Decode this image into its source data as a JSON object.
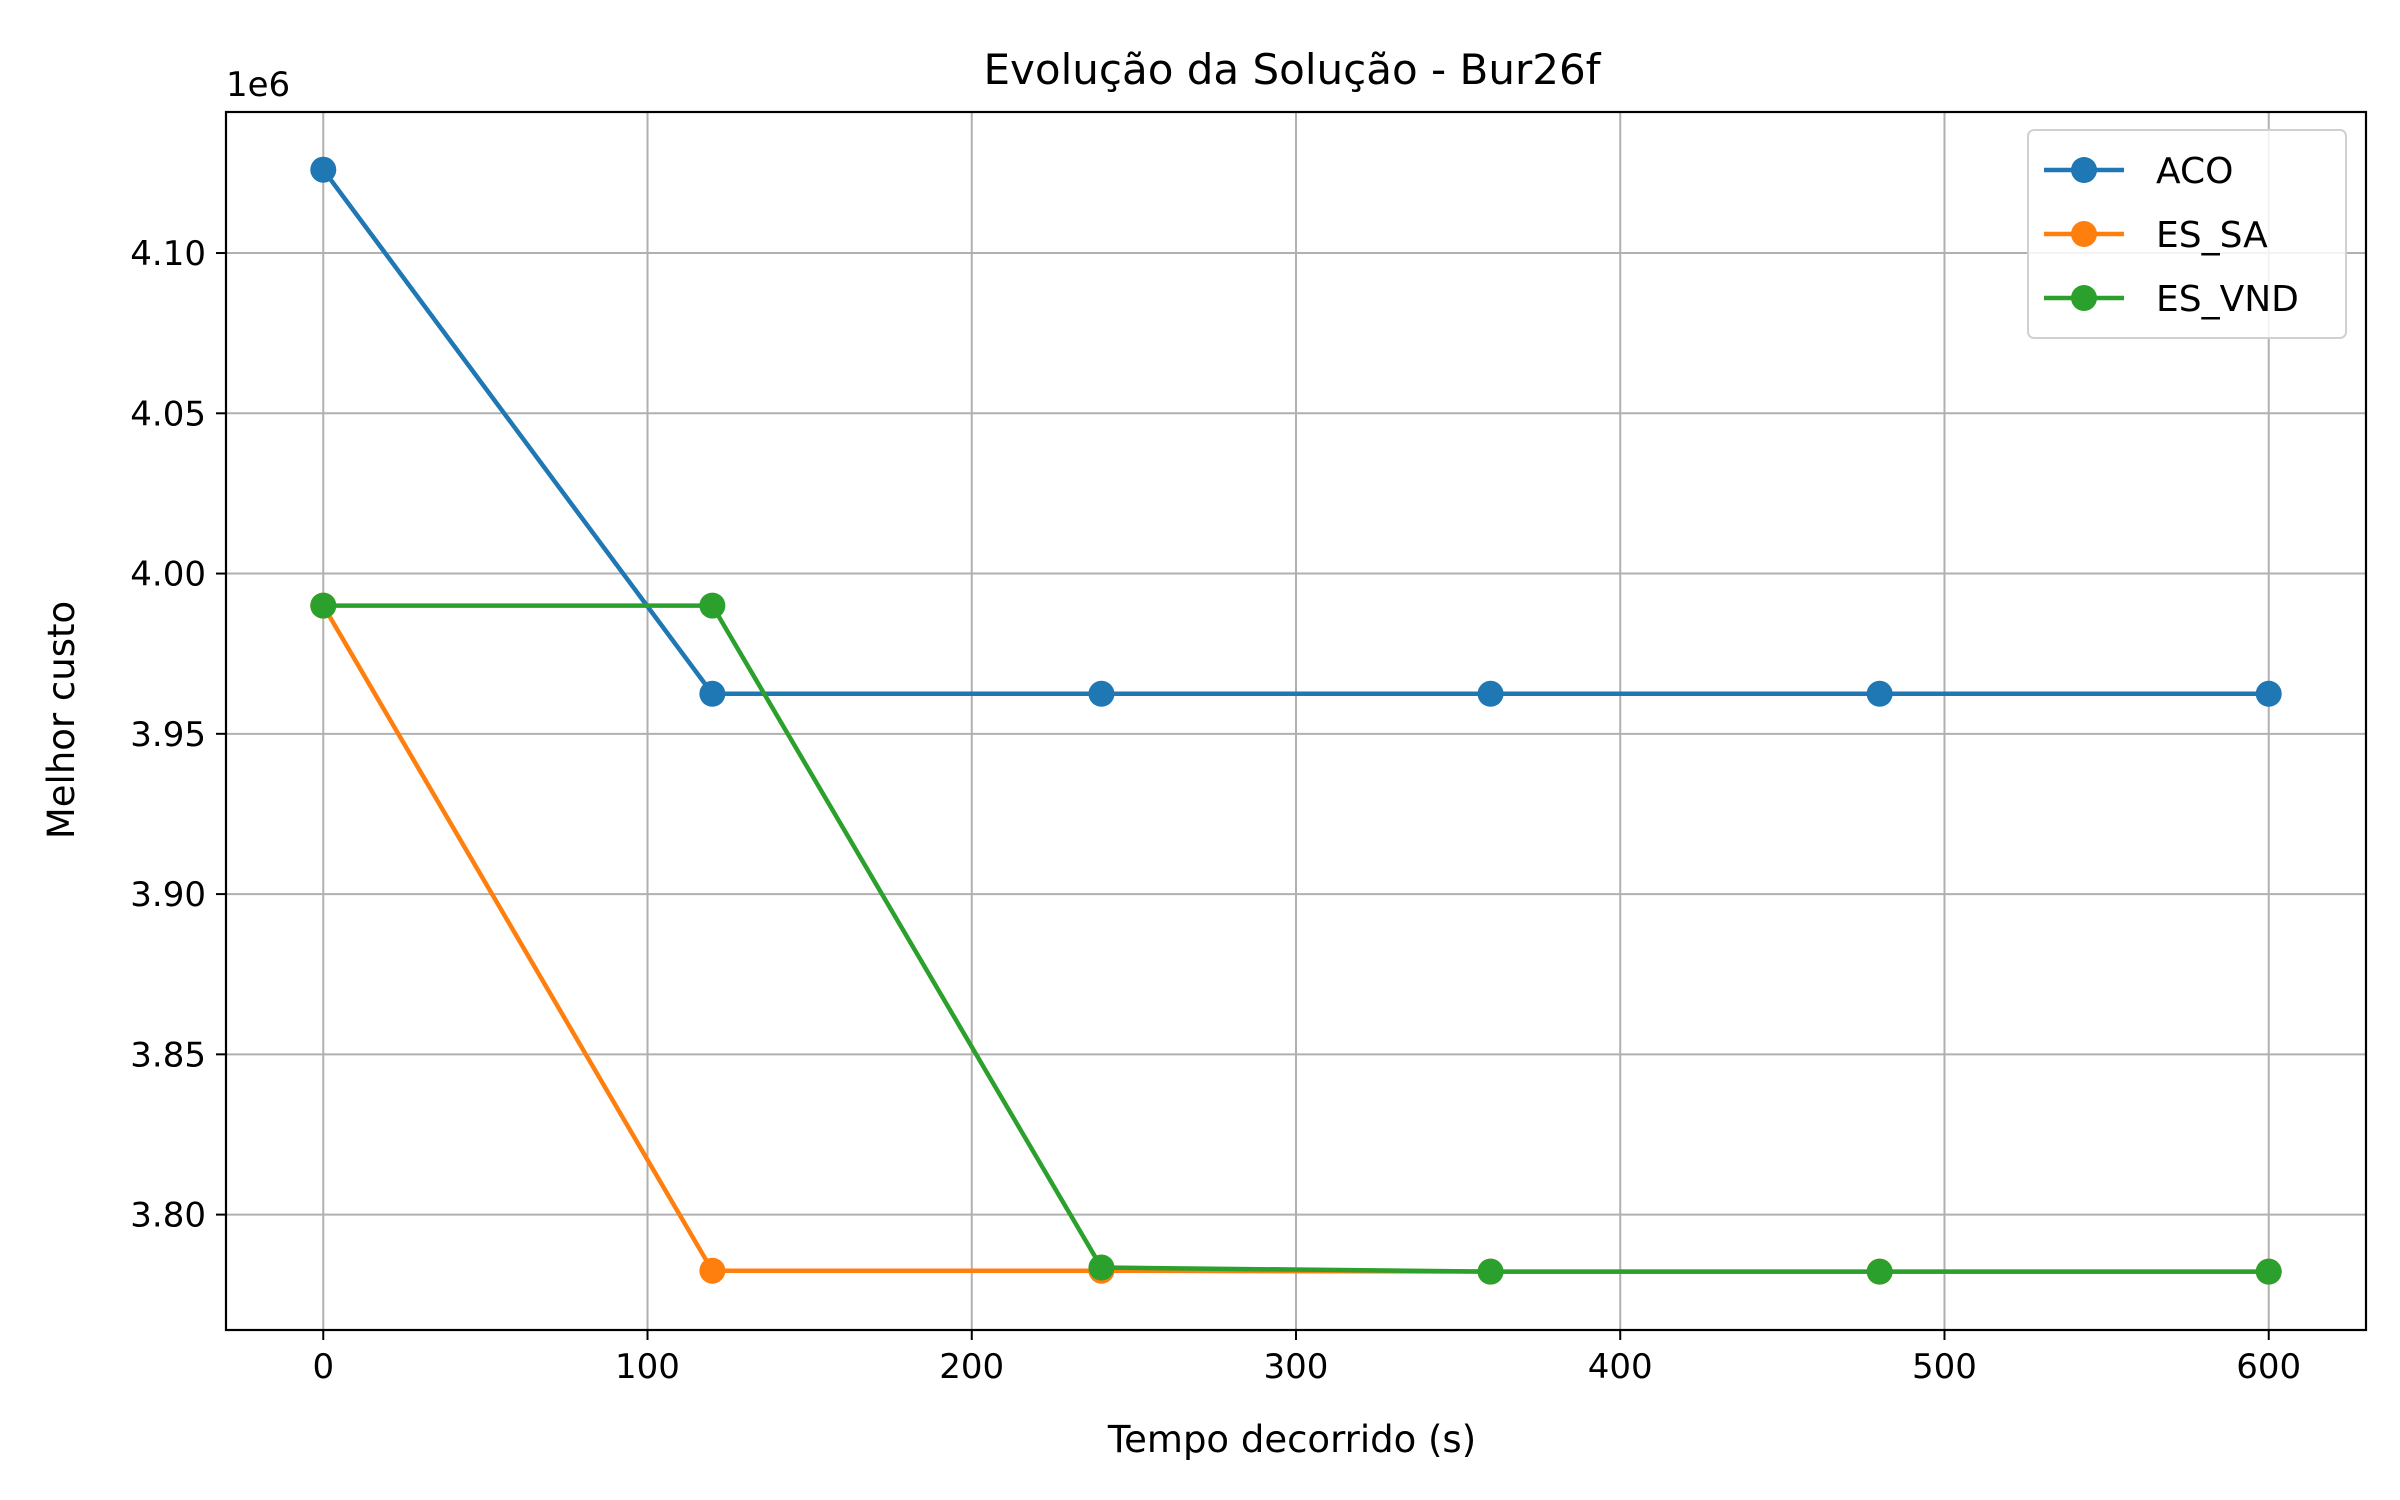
{
  "chart_data": {
    "type": "line",
    "title": "Evolução da Solução - Bur26f",
    "xlabel": "Tempo decorrido (s)",
    "ylabel": "Melhor custo",
    "y_offset_label": "1e6",
    "xlim": [
      -30,
      630
    ],
    "ylim": [
      3764000,
      4144000
    ],
    "xticks": [
      0,
      100,
      200,
      300,
      400,
      500,
      600
    ],
    "xtick_labels": [
      "0",
      "100",
      "200",
      "300",
      "400",
      "500",
      "600"
    ],
    "yticks": [
      3800000,
      3850000,
      3900000,
      3950000,
      4000000,
      4050000,
      4100000
    ],
    "ytick_labels": [
      "3.80",
      "3.85",
      "3.90",
      "3.95",
      "4.00",
      "4.05",
      "4.10"
    ],
    "grid": true,
    "legend_position": "top-right",
    "x": [
      0,
      120,
      240,
      360,
      480,
      600
    ],
    "series": [
      {
        "name": "ACO",
        "color": "#1f77b4",
        "values": [
          4126000,
          3962500,
          3962500,
          3962500,
          3962500,
          3962500
        ]
      },
      {
        "name": "ES_SA",
        "color": "#ff7f0e",
        "values": [
          3990000,
          3782500,
          3782500,
          3782200,
          3782200,
          3782200
        ]
      },
      {
        "name": "ES_VND",
        "color": "#2ca02c",
        "values": [
          3990000,
          3990000,
          3783500,
          3782200,
          3782200,
          3782200
        ]
      }
    ]
  }
}
